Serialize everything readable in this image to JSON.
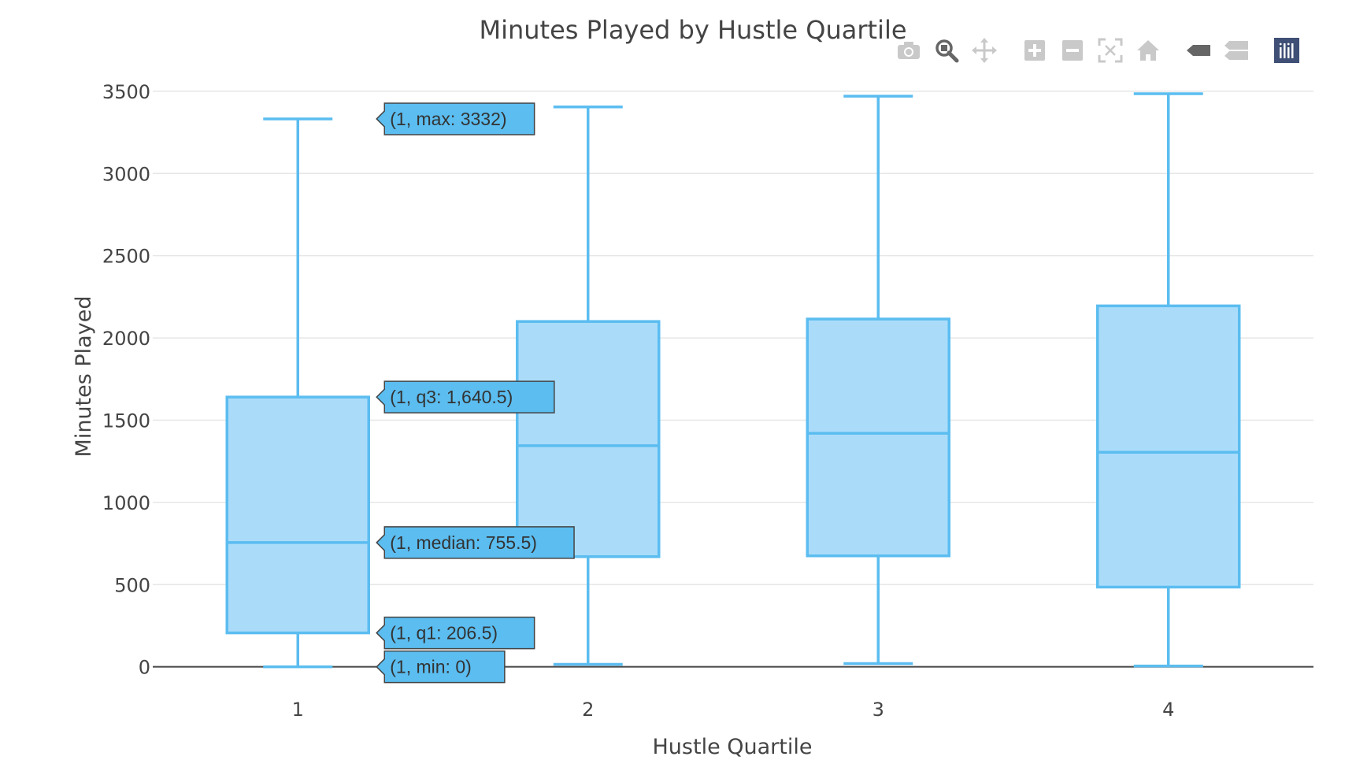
{
  "chart_data": {
    "type": "box",
    "title": "Minutes Played by Hustle Quartile",
    "xlabel": "Hustle Quartile",
    "ylabel": "Minutes Played",
    "categories": [
      "1",
      "2",
      "3",
      "4"
    ],
    "ylim": [
      -150,
      3600
    ],
    "yticks": [
      0,
      500,
      1000,
      1500,
      2000,
      2500,
      3000,
      3500
    ],
    "grid": true,
    "colors": {
      "box_line": "#5bbdf0",
      "box_fill": "#aadcfa",
      "grid": "#e6e6e6",
      "zero_line": "#444444",
      "hover_bg": "#5bbdf0",
      "hover_border": "#444444"
    },
    "boxes": [
      {
        "category": "1",
        "min": 0,
        "q1": 206.5,
        "median": 755.5,
        "q3": 1640.5,
        "max": 3332
      },
      {
        "category": "2",
        "min": 15,
        "q1": 670,
        "median": 1345,
        "q3": 2100,
        "max": 3405
      },
      {
        "category": "3",
        "min": 20,
        "q1": 675,
        "median": 1420,
        "q3": 2115,
        "max": 3470
      },
      {
        "category": "4",
        "min": 5,
        "q1": 485,
        "median": 1305,
        "q3": 2195,
        "max": 3485
      }
    ],
    "hover_labels": [
      {
        "key": "max",
        "text": "(1, max: 3332)",
        "value": 3332
      },
      {
        "key": "q3",
        "text": "(1, q3: 1,640.5)",
        "value": 1640.5
      },
      {
        "key": "median",
        "text": "(1, median: 755.5)",
        "value": 755.5
      },
      {
        "key": "q1",
        "text": "(1, q1: 206.5)",
        "value": 206.5
      },
      {
        "key": "min",
        "text": "(1, min: 0)",
        "value": 0
      }
    ]
  },
  "modebar": {
    "icons": [
      "camera-icon",
      "zoom-icon",
      "pan-icon",
      "zoom-in-icon",
      "zoom-out-icon",
      "autoscale-icon",
      "reset-axes-icon",
      "hover-closest-icon",
      "hover-compare-icon",
      "plotly-logo-icon"
    ]
  }
}
